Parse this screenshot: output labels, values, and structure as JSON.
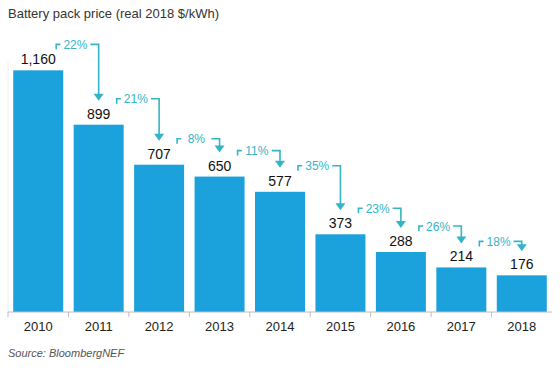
{
  "chart_data": {
    "type": "bar",
    "title": "Battery pack price (real 2018 $/kWh)",
    "categories": [
      "2010",
      "2011",
      "2012",
      "2013",
      "2014",
      "2015",
      "2016",
      "2017",
      "2018"
    ],
    "values": [
      1160,
      899,
      707,
      650,
      577,
      373,
      288,
      214,
      176
    ],
    "value_labels": [
      "1,160",
      "899",
      "707",
      "650",
      "577",
      "373",
      "288",
      "214",
      "176"
    ],
    "data_labels": true,
    "color": "#1ba1db",
    "ylim": [
      0,
      1200
    ],
    "tick_labels": "x",
    "grid": false,
    "annotations": [
      "22%",
      "21%",
      "8%",
      "11%",
      "35%",
      "23%",
      "26%",
      "18%"
    ],
    "source": "Source: BloombergNEF"
  }
}
